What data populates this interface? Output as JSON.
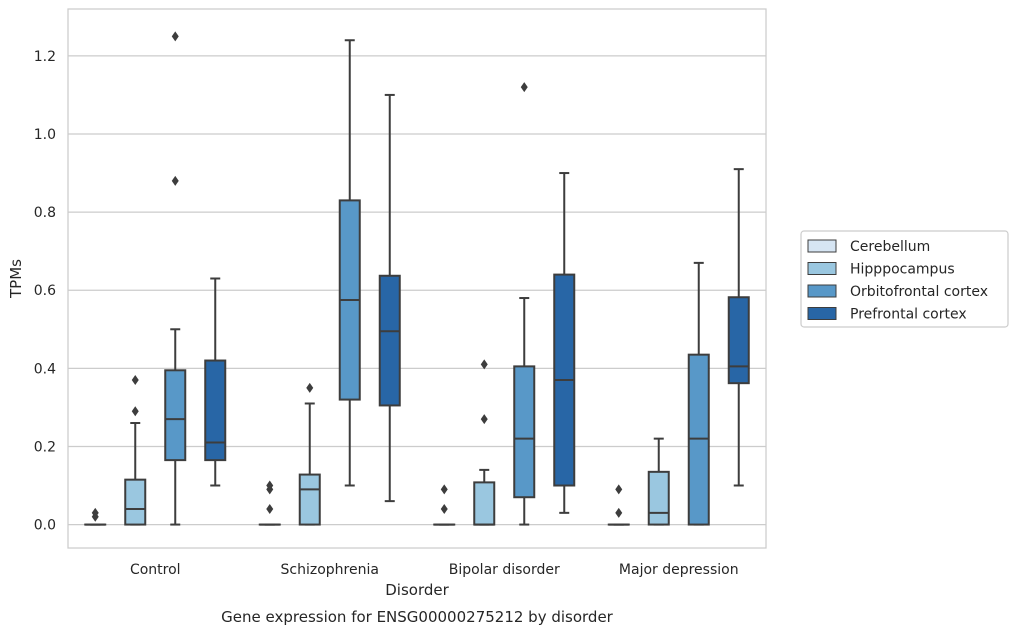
{
  "chart_data": {
    "type": "box",
    "title": "",
    "caption": "Gene expression for ENSG00000275212 by disorder",
    "xlabel": "Disorder",
    "ylabel": "TPMs",
    "ylim": [
      -0.06,
      1.32
    ],
    "yticks": [
      0.0,
      0.2,
      0.4,
      0.6,
      0.8,
      1.0,
      1.2
    ],
    "ytick_labels": [
      "0.0",
      "0.2",
      "0.4",
      "0.6",
      "0.8",
      "1.0",
      "1.2"
    ],
    "grid": "horizontal",
    "legend_position": "right",
    "categories": [
      "Control",
      "Schizophrenia",
      "Bipolar disorder",
      "Major depression"
    ],
    "series": [
      {
        "name": "Cerebellum",
        "color": "#d6e5f3",
        "boxes": [
          {
            "min": 0.0,
            "q1": 0.0,
            "median": 0.0,
            "q3": 0.0,
            "max": 0.0,
            "outliers": [
              0.02,
              0.03
            ]
          },
          {
            "min": 0.0,
            "q1": 0.0,
            "median": 0.0,
            "q3": 0.0,
            "max": 0.0,
            "outliers": [
              0.04,
              0.09,
              0.1
            ]
          },
          {
            "min": 0.0,
            "q1": 0.0,
            "median": 0.0,
            "q3": 0.0,
            "max": 0.0,
            "outliers": [
              0.04,
              0.09
            ]
          },
          {
            "min": 0.0,
            "q1": 0.0,
            "median": 0.0,
            "q3": 0.0,
            "max": 0.0,
            "outliers": [
              0.03,
              0.09
            ]
          }
        ]
      },
      {
        "name": "Hipppocampus",
        "color": "#9ac7e0",
        "boxes": [
          {
            "min": 0.0,
            "q1": 0.0,
            "median": 0.04,
            "q3": 0.115,
            "max": 0.26,
            "outliers": [
              0.29,
              0.37
            ]
          },
          {
            "min": 0.0,
            "q1": 0.0,
            "median": 0.09,
            "q3": 0.128,
            "max": 0.31,
            "outliers": [
              0.35
            ]
          },
          {
            "min": 0.0,
            "q1": 0.0,
            "median": 0.0,
            "q3": 0.108,
            "max": 0.14,
            "outliers": [
              0.27,
              0.41
            ]
          },
          {
            "min": 0.0,
            "q1": 0.0,
            "median": 0.03,
            "q3": 0.135,
            "max": 0.22,
            "outliers": []
          }
        ]
      },
      {
        "name": "Orbitofrontal cortex",
        "color": "#5898c8",
        "boxes": [
          {
            "min": 0.0,
            "q1": 0.165,
            "median": 0.27,
            "q3": 0.395,
            "max": 0.5,
            "outliers": [
              0.88,
              1.25
            ]
          },
          {
            "min": 0.1,
            "q1": 0.32,
            "median": 0.575,
            "q3": 0.83,
            "max": 1.24,
            "outliers": []
          },
          {
            "min": 0.0,
            "q1": 0.07,
            "median": 0.22,
            "q3": 0.405,
            "max": 0.58,
            "outliers": [
              1.12
            ]
          },
          {
            "min": 0.0,
            "q1": 0.0,
            "median": 0.22,
            "q3": 0.435,
            "max": 0.67,
            "outliers": []
          }
        ]
      },
      {
        "name": "Prefrontal cortex",
        "color": "#2866a6",
        "boxes": [
          {
            "min": 0.1,
            "q1": 0.165,
            "median": 0.21,
            "q3": 0.42,
            "max": 0.63,
            "outliers": []
          },
          {
            "min": 0.06,
            "q1": 0.305,
            "median": 0.495,
            "q3": 0.637,
            "max": 1.1,
            "outliers": []
          },
          {
            "min": 0.03,
            "q1": 0.1,
            "median": 0.37,
            "q3": 0.64,
            "max": 0.9,
            "outliers": []
          },
          {
            "min": 0.1,
            "q1": 0.362,
            "median": 0.405,
            "q3": 0.582,
            "max": 0.91,
            "outliers": []
          }
        ]
      }
    ]
  }
}
